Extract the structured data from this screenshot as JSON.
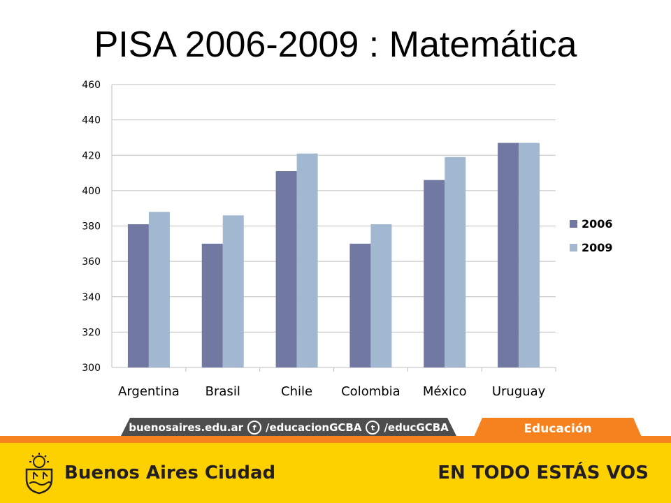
{
  "slide": {
    "title": "PISA 2006-2009 : Matemática"
  },
  "chart_data": {
    "type": "bar",
    "title": "",
    "xlabel": "",
    "ylabel": "",
    "categories": [
      "Argentina",
      "Brasil",
      "Chile",
      "Colombia",
      "México",
      "Uruguay"
    ],
    "series": [
      {
        "name": "2006",
        "color": "#7179a3",
        "values": [
          381,
          370,
          411,
          370,
          406,
          427
        ]
      },
      {
        "name": "2009",
        "color": "#a1b8d0",
        "values": [
          388,
          386,
          421,
          381,
          419,
          427
        ]
      }
    ],
    "ylim": [
      300,
      460
    ],
    "yticks": [
      300,
      320,
      340,
      360,
      380,
      400,
      420,
      440,
      460
    ],
    "grid": true,
    "legend_position": "right"
  },
  "footer": {
    "site": "buenosaires.edu.ar",
    "facebook_icon": "facebook-icon",
    "facebook_handle": "/educacionGCBA",
    "twitter_icon": "twitter-icon",
    "twitter_handle": "/educGCBA",
    "section_tab": "Educación",
    "brand_name": "Buenos Aires Ciudad",
    "slogan": "EN TODO ESTÁS VOS",
    "accent_orange": "#f5821f",
    "accent_yellow": "#fdd000",
    "dark_gray": "#4d4d4d"
  }
}
